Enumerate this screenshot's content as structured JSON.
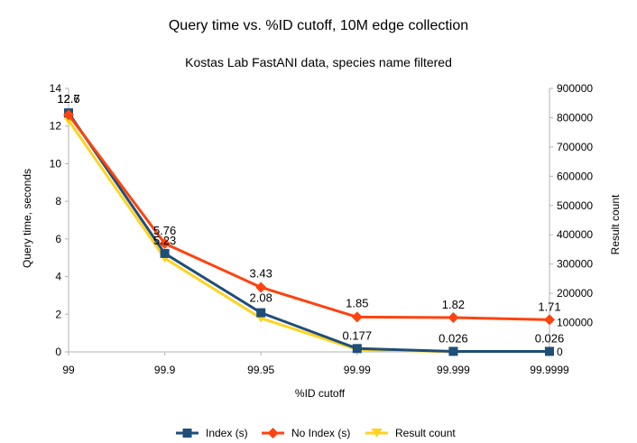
{
  "chart_data": {
    "type": "line",
    "title": "Query time vs. %ID cutoff, 10M edge collection",
    "subtitle": "Kostas Lab FastANI data, species name filtered",
    "xlabel": "%ID cutoff",
    "ylabel": "Query time, seconds",
    "y2label": "Result count",
    "categories": [
      "99",
      "99.9",
      "99.95",
      "99.99",
      "99.999",
      "99.9999"
    ],
    "ylim": [
      0,
      14
    ],
    "yticks": [
      0,
      2,
      4,
      6,
      8,
      10,
      12,
      14
    ],
    "y2lim": [
      0,
      900000
    ],
    "y2ticks": [
      0,
      100000,
      200000,
      300000,
      400000,
      500000,
      600000,
      700000,
      800000,
      900000
    ],
    "grid": false,
    "legend_position": "bottom",
    "series": [
      {
        "name": "Index (s)",
        "axis": "left",
        "color": "#1f4e79",
        "marker": "square",
        "values": [
          12.7,
          5.23,
          2.08,
          0.177,
          0.026,
          0.026
        ],
        "labels": [
          "12.7",
          "5.23",
          "2.08",
          "0.177",
          "0.026",
          "0.026"
        ]
      },
      {
        "name": "No Index (s)",
        "axis": "left",
        "color": "#ff420e",
        "marker": "diamond",
        "values": [
          12.6,
          5.76,
          3.43,
          1.85,
          1.82,
          1.71
        ],
        "labels": [
          "12.6",
          "5.76",
          "3.43",
          "1.85",
          "1.82",
          "1.71"
        ]
      },
      {
        "name": "Result count",
        "axis": "right",
        "color": "#ffd320",
        "marker": "triangle-down",
        "values": [
          790000,
          320000,
          115000,
          8000,
          500,
          200
        ],
        "labels": null
      }
    ]
  }
}
